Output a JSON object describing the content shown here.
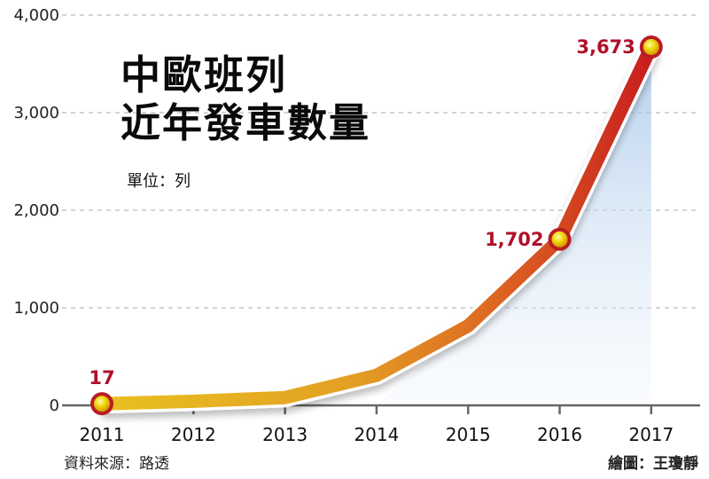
{
  "title_line1": "中歐班列",
  "title_line2": "近年發車數量",
  "unit_label": "單位：列",
  "source_label": "資料來源：路透",
  "credit_label": "繪圖：王瓊靜",
  "colors": {
    "line_start": "#e8b820",
    "line_mid": "#e07820",
    "line_end": "#c81e1e",
    "marker_fill": "#f5e020",
    "marker_ring": "#b81c24",
    "value_label": "#b0102a",
    "area_fill": "#aecbec",
    "grid": "#bbbbbb",
    "axis": "#666666"
  },
  "chart_data": {
    "type": "line",
    "title": "中歐班列 近年發車數量",
    "subtitle": "單位：列",
    "xlabel": "",
    "ylabel": "",
    "categories": [
      "2011",
      "2012",
      "2013",
      "2014",
      "2015",
      "2016",
      "2017"
    ],
    "series": [
      {
        "name": "發車數量",
        "values": [
          17,
          42,
          80,
          308,
          815,
          1702,
          3673
        ]
      }
    ],
    "labeled_points": [
      {
        "x": "2011",
        "label": "17"
      },
      {
        "x": "2016",
        "label": "1,702"
      },
      {
        "x": "2017",
        "label": "3,673"
      }
    ],
    "yticks": [
      "0",
      "1,000",
      "2,000",
      "3,000",
      "4,000"
    ],
    "ylim": [
      0,
      4000
    ],
    "grid": true,
    "legend": "none",
    "annotations": [
      "資料來源：路透",
      "繪圖：王瓊靜"
    ]
  }
}
